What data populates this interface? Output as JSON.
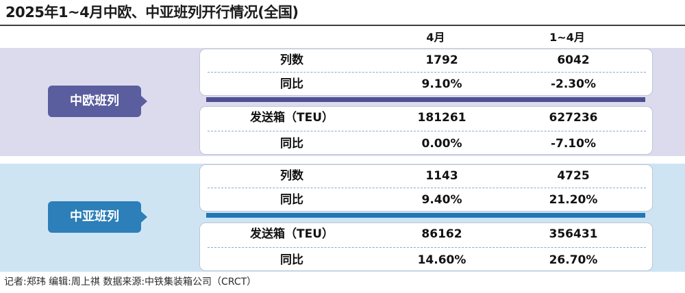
{
  "title": "2025年1~4月中欧、中亚班列开行情况(全国)",
  "columns": [
    "4月",
    "1~4月"
  ],
  "sections": [
    {
      "label": "中欧班列",
      "rows": [
        {
          "name": "列数",
          "apr": "1792",
          "jan_apr": "6042"
        },
        {
          "name": "同比",
          "apr": "9.10%",
          "jan_apr": "-2.30%"
        },
        {
          "name": "发送箱（TEU）",
          "apr": "181261",
          "jan_apr": "627236"
        },
        {
          "name": "同比",
          "apr": "0.00%",
          "jan_apr": "-7.10%"
        }
      ]
    },
    {
      "label": "中亚班列",
      "rows": [
        {
          "name": "列数",
          "apr": "1143",
          "jan_apr": "4725"
        },
        {
          "name": "同比",
          "apr": "9.40%",
          "jan_apr": "21.20%"
        },
        {
          "name": "发送箱（TEU）",
          "apr": "86162",
          "jan_apr": "356431"
        },
        {
          "name": "同比",
          "apr": "14.60%",
          "jan_apr": "26.70%"
        }
      ]
    }
  ],
  "footer": "记者:郑玮  编辑:周上祺  数据来源:中铁集装箱公司（CRCT）",
  "colors": {
    "europe_band": "#dcdbee",
    "europe_accent": "#5a5d9e",
    "asia_band": "#cfe4f3",
    "asia_accent": "#2c7fb8"
  }
}
